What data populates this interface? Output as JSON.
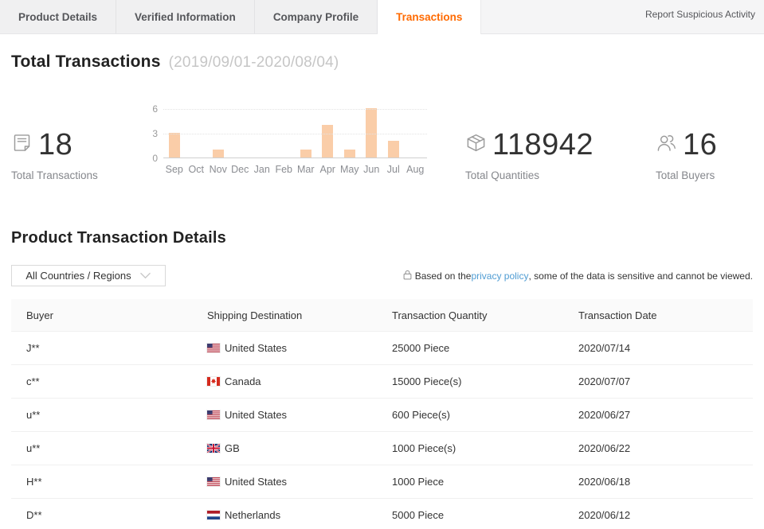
{
  "tabs": {
    "items": [
      {
        "label": "Product Details",
        "active": false
      },
      {
        "label": "Verified Information",
        "active": false
      },
      {
        "label": "Company Profile",
        "active": false
      },
      {
        "label": "Transactions",
        "active": true
      }
    ],
    "report_link": "Report Suspicious Activity"
  },
  "summary": {
    "title": "Total Transactions",
    "date_range": "(2019/09/01-2020/08/04)",
    "stats": [
      {
        "icon": "document-icon",
        "value": "18",
        "label": "Total Transactions"
      },
      {
        "icon": "package-icon",
        "value": "118942",
        "label": "Total Quantities"
      },
      {
        "icon": "buyers-icon",
        "value": "16",
        "label": "Total Buyers"
      }
    ]
  },
  "chart_data": {
    "type": "bar",
    "title": "Monthly transaction counts (2019/09-2020/08)",
    "categories": [
      "Sep",
      "Oct",
      "Nov",
      "Dec",
      "Jan",
      "Feb",
      "Mar",
      "Apr",
      "May",
      "Jun",
      "Jul",
      "Aug"
    ],
    "values": [
      3,
      0,
      1,
      0,
      0,
      0,
      1,
      4,
      1,
      6,
      2,
      0
    ],
    "xlabel": "",
    "ylabel": "",
    "ylim": [
      0,
      6
    ],
    "yticks": [
      0,
      3,
      6
    ],
    "grid": "horizontal-dotted",
    "legend": "none",
    "bar_color": "#facda8"
  },
  "details": {
    "title": "Product Transaction Details",
    "filter_label": "All Countries / Regions",
    "privacy_prefix": "Based on the ",
    "privacy_link": "privacy policy",
    "privacy_suffix": ", some of the data is sensitive and cannot be viewed.",
    "table": {
      "columns": [
        "Buyer",
        "Shipping Destination",
        "Transaction Quantity",
        "Transaction Date"
      ],
      "rows": [
        {
          "buyer": "J**",
          "country": "United States",
          "flag": "us",
          "quantity": "25000 Piece",
          "date": "2020/07/14"
        },
        {
          "buyer": "c**",
          "country": "Canada",
          "flag": "ca",
          "quantity": "15000 Piece(s)",
          "date": "2020/07/07"
        },
        {
          "buyer": "u**",
          "country": "United States",
          "flag": "us",
          "quantity": "600 Piece(s)",
          "date": "2020/06/27"
        },
        {
          "buyer": "u**",
          "country": "GB",
          "flag": "gb",
          "quantity": "1000 Piece(s)",
          "date": "2020/06/22"
        },
        {
          "buyer": "H**",
          "country": "United States",
          "flag": "us",
          "quantity": "1000 Piece",
          "date": "2020/06/18"
        },
        {
          "buyer": "D**",
          "country": "Netherlands",
          "flag": "nl",
          "quantity": "5000 Piece",
          "date": "2020/06/12"
        }
      ]
    }
  },
  "colors": {
    "accent": "#ff6a00",
    "bar": "#facda8",
    "link": "#4f9cd3"
  }
}
